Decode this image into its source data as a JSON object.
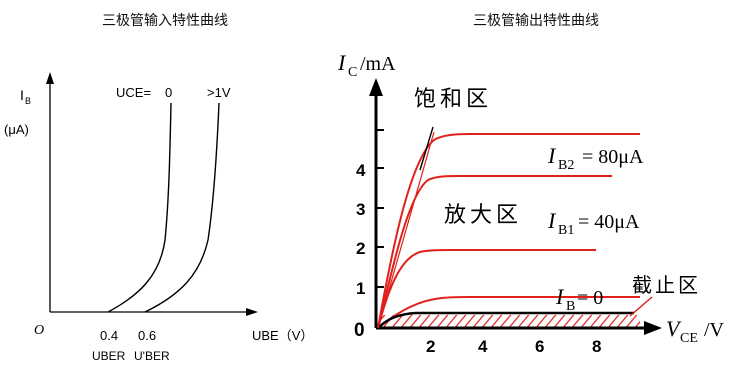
{
  "input_chart": {
    "title": "三极管输入特性曲线",
    "y_axis": {
      "symbol": "I",
      "sub": "B",
      "unit": "(μA)"
    },
    "x_axis": {
      "label": "UBE（V）",
      "origin": "O"
    },
    "x_ticks": [
      {
        "value": "0.4",
        "name": "UBER"
      },
      {
        "value": "0.6",
        "name": "U'BER"
      }
    ],
    "curves": [
      {
        "label": "0",
        "prefix": "UCE="
      },
      {
        "label": ">1V"
      }
    ]
  },
  "output_chart": {
    "title": "三极管输出特性曲线",
    "y_axis": {
      "label": "I",
      "sub": "C",
      "unit": "/mA"
    },
    "x_axis": {
      "label": "V",
      "sub": "CE",
      "unit": "/V"
    },
    "y_ticks": [
      "0",
      "1",
      "2",
      "3",
      "4"
    ],
    "x_ticks": [
      "2",
      "4",
      "6",
      "8"
    ],
    "regions": {
      "saturation": "饱和区",
      "amplification": "放大区",
      "cutoff": "截止区"
    },
    "curve_labels": {
      "ib2": {
        "symbol": "I",
        "sub": "B2",
        "value": "= 80μA"
      },
      "ib1": {
        "symbol": "I",
        "sub": "B1",
        "value": "= 40μA"
      },
      "ib0": {
        "symbol": "I",
        "sub": "B",
        "value": "= 0"
      }
    },
    "colors": {
      "curve": "#e0201a",
      "axis": "#000000"
    }
  }
}
